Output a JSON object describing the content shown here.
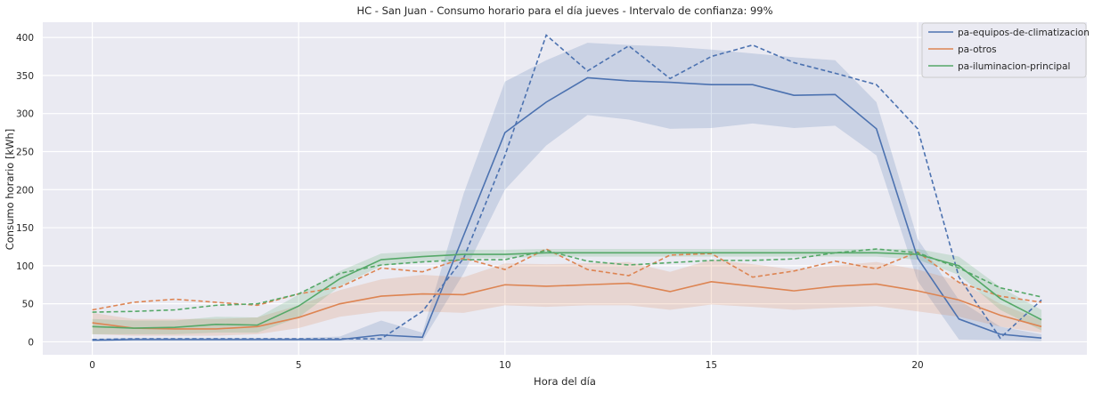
{
  "chart_data": {
    "type": "line",
    "title": "HC - San Juan - Consumo horario para el día jueves - Intervalo de confianza: 99%",
    "xlabel": "Hora del día",
    "ylabel": "Consumo horario [kWh]",
    "xlim": [
      -1.2,
      24.1
    ],
    "ylim": [
      -17,
      420
    ],
    "xticks": [
      0,
      5,
      10,
      15,
      20
    ],
    "yticks": [
      0,
      50,
      100,
      150,
      200,
      250,
      300,
      350,
      400
    ],
    "grid": true,
    "legend_position": "top-right",
    "x": [
      0,
      1,
      2,
      3,
      4,
      5,
      6,
      7,
      8,
      9,
      10,
      11,
      12,
      13,
      14,
      15,
      16,
      17,
      18,
      19,
      20,
      21,
      22,
      23
    ],
    "series": [
      {
        "name": "pa-equipos-de-climatizacion",
        "color": "#4c72b0",
        "mean": [
          2,
          3,
          3,
          3,
          3,
          3,
          3,
          9,
          6,
          140,
          275,
          315,
          347,
          343,
          341,
          338,
          338,
          324,
          325,
          280,
          110,
          30,
          10,
          5
        ],
        "lower": [
          1,
          1,
          1,
          1,
          1,
          1,
          1,
          1,
          1,
          90,
          200,
          258,
          298,
          292,
          280,
          281,
          287,
          281,
          284,
          245,
          80,
          3,
          2,
          1
        ],
        "upper": [
          4,
          5,
          5,
          5,
          5,
          5,
          7,
          28,
          12,
          195,
          342,
          370,
          393,
          390,
          388,
          384,
          379,
          374,
          370,
          315,
          135,
          55,
          20,
          10
        ],
        "dashed": [
          3,
          4,
          4,
          4,
          4,
          4,
          4,
          4,
          40,
          110,
          245,
          403,
          356,
          389,
          346,
          375,
          390,
          367,
          353,
          338,
          280,
          85,
          5,
          55
        ]
      },
      {
        "name": "pa-otros",
        "color": "#dd8452",
        "mean": [
          25,
          18,
          17,
          17,
          20,
          32,
          50,
          60,
          63,
          62,
          75,
          73,
          75,
          77,
          66,
          79,
          73,
          67,
          73,
          76,
          67,
          55,
          35,
          20
        ],
        "lower": [
          10,
          8,
          8,
          8,
          10,
          18,
          33,
          40,
          40,
          38,
          48,
          46,
          48,
          48,
          42,
          49,
          46,
          42,
          45,
          47,
          40,
          33,
          20,
          12
        ],
        "upper": [
          38,
          30,
          30,
          30,
          32,
          48,
          68,
          82,
          88,
          85,
          103,
          102,
          103,
          105,
          92,
          108,
          102,
          95,
          100,
          105,
          95,
          80,
          50,
          28
        ],
        "dashed": [
          42,
          52,
          56,
          52,
          48,
          63,
          72,
          97,
          92,
          110,
          95,
          122,
          95,
          87,
          114,
          116,
          85,
          93,
          106,
          96,
          118,
          78,
          60,
          52
        ]
      },
      {
        "name": "pa-iluminacion-principal",
        "color": "#55a868",
        "mean": [
          20,
          18,
          19,
          23,
          22,
          47,
          83,
          108,
          112,
          115,
          115,
          117,
          117,
          117,
          117,
          117,
          117,
          117,
          117,
          117,
          115,
          100,
          57,
          29
        ],
        "lower": [
          10,
          10,
          10,
          12,
          12,
          32,
          73,
          100,
          105,
          110,
          110,
          112,
          112,
          112,
          112,
          112,
          112,
          112,
          112,
          112,
          108,
          88,
          42,
          15
        ],
        "upper": [
          30,
          28,
          28,
          33,
          32,
          62,
          93,
          116,
          119,
          121,
          121,
          122,
          122,
          122,
          122,
          122,
          122,
          122,
          122,
          122,
          122,
          112,
          72,
          42
        ],
        "dashed": [
          39,
          40,
          42,
          48,
          50,
          63,
          90,
          101,
          105,
          108,
          108,
          120,
          106,
          101,
          104,
          107,
          107,
          109,
          117,
          122,
          117,
          97,
          71,
          59
        ]
      }
    ]
  }
}
